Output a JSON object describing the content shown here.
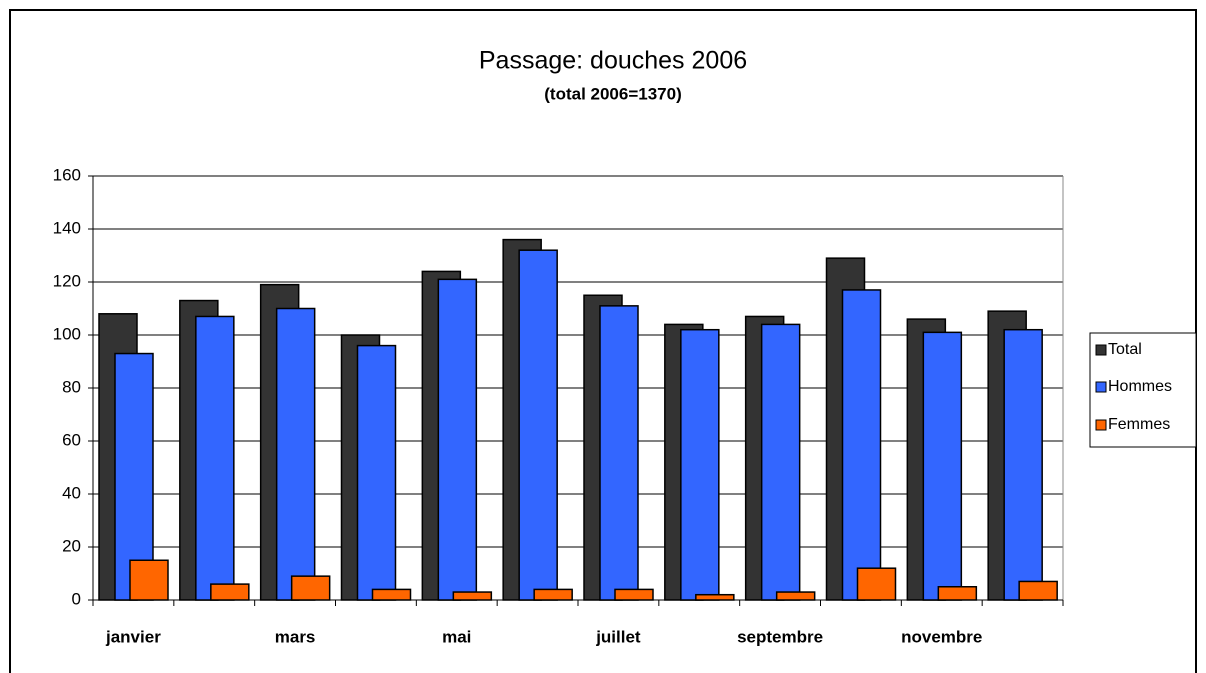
{
  "chart_data": {
    "type": "bar",
    "title": "Passage: douches 2006",
    "subtitle": "(total 2006=1370)",
    "categories": [
      "janvier",
      null,
      "mars",
      null,
      "mai",
      null,
      "juillet",
      null,
      "septembre",
      null,
      "novembre",
      null
    ],
    "series": [
      {
        "name": "Total",
        "color": "#333333",
        "values": [
          108,
          113,
          119,
          100,
          124,
          136,
          115,
          104,
          107,
          129,
          106,
          109
        ]
      },
      {
        "name": "Hommes",
        "color": "#3366ff",
        "values": [
          93,
          107,
          110,
          96,
          121,
          132,
          111,
          102,
          104,
          117,
          101,
          102
        ]
      },
      {
        "name": "Femmes",
        "color": "#ff6600",
        "values": [
          15,
          6,
          9,
          4,
          3,
          4,
          4,
          2,
          3,
          12,
          5,
          7
        ]
      }
    ],
    "ylim": [
      0,
      160
    ],
    "yticks": [
      0,
      20,
      40,
      60,
      80,
      100,
      120,
      140,
      160
    ],
    "grid": true,
    "legend": "right"
  }
}
